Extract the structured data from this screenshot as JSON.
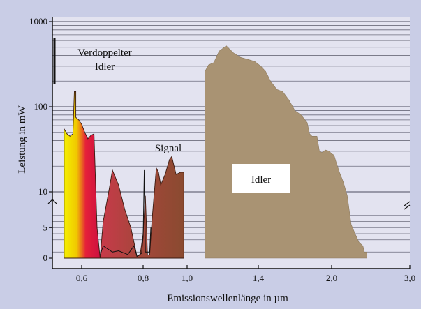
{
  "chart_data": {
    "type": "area",
    "title": "",
    "xlabel": "Emissionswellenlänge in µm",
    "ylabel": "Leistung in mW",
    "xlim": [
      0.5,
      3.0
    ],
    "ylim": [
      0,
      1000
    ],
    "y_scale": "broken: linear 0–8, log 8–1000",
    "x_ticks": [
      {
        "value": 0.6,
        "label": "0,6"
      },
      {
        "value": 0.8,
        "label": "0,8"
      },
      {
        "value": 1.0,
        "label": "1,0"
      },
      {
        "value": 1.4,
        "label": "1,4"
      },
      {
        "value": 2.0,
        "label": "2,0"
      },
      {
        "value": 3.0,
        "label": "3,0"
      }
    ],
    "y_ticks": [
      {
        "value": 0,
        "label": "0"
      },
      {
        "value": 5,
        "label": "5"
      },
      {
        "value": 10,
        "label": "10"
      },
      {
        "value": 100,
        "label": "100"
      },
      {
        "value": 1000,
        "label": "1000"
      }
    ],
    "grid": true,
    "series": [
      {
        "name": "Verdoppelter Idler",
        "color": "gradient yellow-red",
        "points": [
          [
            0.54,
            0
          ],
          [
            0.54,
            55
          ],
          [
            0.55,
            48
          ],
          [
            0.56,
            45
          ],
          [
            0.57,
            48
          ],
          [
            0.575,
            150
          ],
          [
            0.58,
            150
          ],
          [
            0.58,
            75
          ],
          [
            0.59,
            70
          ],
          [
            0.6,
            62
          ],
          [
            0.61,
            50
          ],
          [
            0.62,
            42
          ],
          [
            0.63,
            46
          ],
          [
            0.64,
            48
          ],
          [
            0.65,
            5
          ],
          [
            0.66,
            0
          ]
        ]
      },
      {
        "name": "Signal",
        "color": "#7a3a2a",
        "points": [
          [
            0.66,
            0
          ],
          [
            0.67,
            6
          ],
          [
            0.69,
            11
          ],
          [
            0.7,
            18
          ],
          [
            0.72,
            12
          ],
          [
            0.74,
            8
          ],
          [
            0.76,
            5
          ],
          [
            0.78,
            0.3
          ],
          [
            0.79,
            0.5
          ],
          [
            0.8,
            4
          ],
          [
            0.81,
            9
          ],
          [
            0.82,
            0.5
          ],
          [
            0.83,
            0.5
          ],
          [
            0.84,
            6
          ],
          [
            0.86,
            19
          ],
          [
            0.87,
            17
          ],
          [
            0.88,
            12
          ],
          [
            0.9,
            16
          ],
          [
            0.92,
            24
          ],
          [
            0.93,
            26
          ],
          [
            0.95,
            16
          ],
          [
            0.97,
            17
          ],
          [
            0.985,
            17
          ],
          [
            0.985,
            0
          ]
        ]
      },
      {
        "name": "Idler",
        "color": "#a99373",
        "points": [
          [
            1.1,
            0
          ],
          [
            1.1,
            260
          ],
          [
            1.12,
            310
          ],
          [
            1.15,
            330
          ],
          [
            1.18,
            450
          ],
          [
            1.22,
            520
          ],
          [
            1.26,
            430
          ],
          [
            1.3,
            380
          ],
          [
            1.34,
            360
          ],
          [
            1.38,
            340
          ],
          [
            1.42,
            300
          ],
          [
            1.46,
            260
          ],
          [
            1.5,
            200
          ],
          [
            1.55,
            160
          ],
          [
            1.6,
            150
          ],
          [
            1.65,
            120
          ],
          [
            1.7,
            90
          ],
          [
            1.75,
            80
          ],
          [
            1.8,
            65
          ],
          [
            1.82,
            48
          ],
          [
            1.84,
            45
          ],
          [
            1.88,
            45
          ],
          [
            1.9,
            30
          ],
          [
            1.92,
            29
          ],
          [
            1.95,
            31
          ],
          [
            1.98,
            30
          ],
          [
            2.0,
            28
          ],
          [
            2.03,
            27
          ],
          [
            2.06,
            22
          ],
          [
            2.1,
            17
          ],
          [
            2.15,
            13
          ],
          [
            2.2,
            9
          ],
          [
            2.25,
            5.5
          ],
          [
            2.3,
            4
          ],
          [
            2.35,
            2.6
          ],
          [
            2.4,
            2
          ],
          [
            2.42,
            1
          ],
          [
            2.45,
            1
          ],
          [
            2.45,
            0
          ]
        ]
      }
    ],
    "annotations": [
      {
        "text_lines": [
          "Verdoppelter",
          "Idler"
        ],
        "series": "Verdoppelter Idler"
      },
      {
        "text": "Signal",
        "series": "Signal"
      },
      {
        "text": "Idler",
        "series": "Idler",
        "boxed": true
      }
    ]
  }
}
